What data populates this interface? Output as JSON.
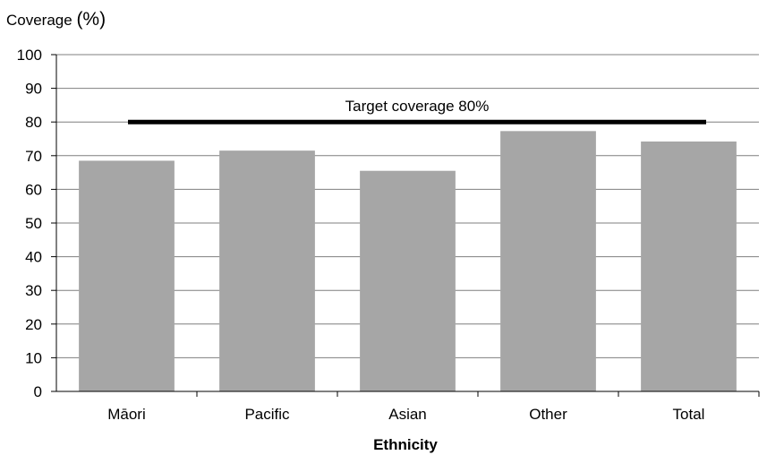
{
  "chart_data": {
    "type": "bar",
    "title": "",
    "ylabel": "Coverage (%)",
    "ylabel_parts": {
      "text": "Coverage ",
      "unit": "(%)"
    },
    "xlabel": "Ethnicity",
    "categories": [
      "Māori",
      "Pacific",
      "Asian",
      "Other",
      "Total"
    ],
    "values": [
      68.5,
      71.5,
      65.5,
      77.3,
      74.2
    ],
    "ylim": [
      0,
      100
    ],
    "yticks": [
      "0",
      "10",
      "20",
      "30",
      "40",
      "50",
      "60",
      "70",
      "80",
      "90",
      "100"
    ],
    "grid": true,
    "legend": "none",
    "bar_color": "#a6a6a6",
    "reference_line": {
      "value": 80,
      "label": "Target coverage 80%",
      "color": "#000000"
    }
  }
}
